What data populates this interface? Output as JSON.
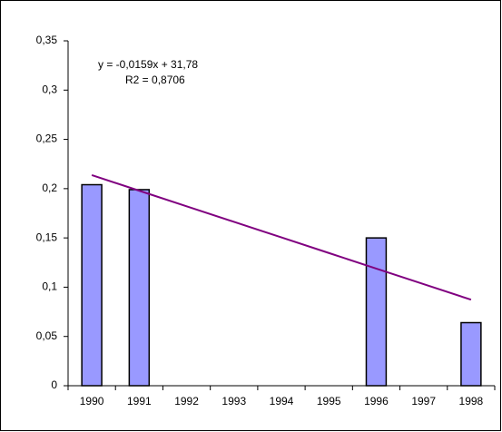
{
  "chart_data": {
    "type": "bar",
    "categories": [
      "1990",
      "1991",
      "1992",
      "1993",
      "1994",
      "1995",
      "1996",
      "1997",
      "1998"
    ],
    "values": [
      0.204,
      0.199,
      null,
      null,
      null,
      null,
      0.15,
      null,
      0.064
    ],
    "color": "#9999ff",
    "trendline": {
      "color": "#800080",
      "values": [
        0.2137,
        0.1979,
        0.1821,
        0.1663,
        0.1505,
        0.1347,
        0.1189,
        0.1031,
        0.0873
      ]
    },
    "annotations": [
      "y = -0,0159x + 31,78",
      "R2 = 0,8706"
    ],
    "ylim": [
      0,
      0.35
    ],
    "yticks": [
      0,
      {
        "value": 0.05,
        "label": "0,05"
      },
      {
        "value": 0.1,
        "label": "0,1"
      },
      {
        "value": 0.15,
        "label": "0,15"
      },
      {
        "value": 0.2,
        "label": "0,2"
      },
      {
        "value": 0.25,
        "label": "0,25"
      },
      {
        "value": 0.3,
        "label": "0,3"
      },
      {
        "value": 0.35,
        "label": "0,35"
      }
    ],
    "grid": false
  }
}
